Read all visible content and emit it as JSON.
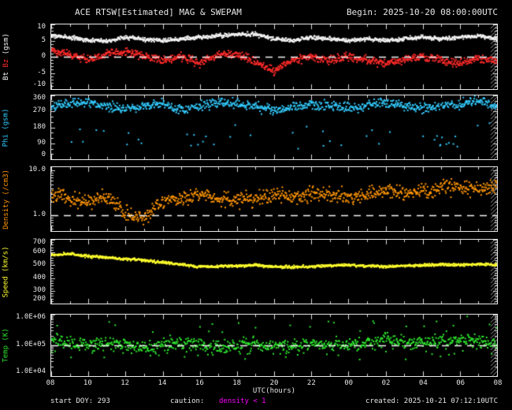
{
  "header": {
    "title": "ACE RTSW[Estimated] MAG & SWEPAM",
    "begin_label": "Begin: 2025-10-20 08:00:00UTC"
  },
  "footer": {
    "start_doy": "start DOY: 293",
    "caution_label": "caution:",
    "caution_value": "density < 1",
    "created": "created: 2025-10-21 07:12:10UTC"
  },
  "colors": {
    "background": "#000000",
    "frame": "#e6e6e6",
    "caution": "#ff00ff",
    "hatch": "#999999"
  },
  "chart_data": {
    "type": "scatter",
    "title": "ACE RTSW[Estimated] MAG & SWEPAM",
    "x_label": "UTC(hours)",
    "x_ticks": [
      "08",
      "10",
      "12",
      "14",
      "16",
      "18",
      "20",
      "22",
      "00",
      "02",
      "04",
      "06",
      "08"
    ],
    "x_range_hours": [
      8,
      32
    ],
    "control_x": [
      8,
      9,
      10,
      11,
      12,
      13,
      14,
      15,
      16,
      17,
      18,
      19,
      20,
      21,
      22,
      23,
      24,
      25,
      26,
      27,
      28,
      29,
      30,
      31,
      32
    ],
    "panels": [
      {
        "name": "mag",
        "ylabel": [
          {
            "text": "Bt",
            "color": "#f5f5f5"
          },
          {
            "text": "Bz",
            "color": "#ff2a2a"
          },
          {
            "text": "(gsm)",
            "color": "#f5f5f5"
          }
        ],
        "scale": "linear",
        "ymin": -10,
        "ymax": 10,
        "minor_step": 1,
        "yticks": [
          {
            "v": 10,
            "label": "10"
          },
          {
            "v": 5,
            "label": "5"
          },
          {
            "v": 0,
            "label": "0"
          },
          {
            "v": -5,
            "label": "-5"
          },
          {
            "v": -10,
            "label": "-10"
          }
        ],
        "dashed_at": 0,
        "series": [
          {
            "name": "Bt",
            "color": "#f5f5f5",
            "noise": 0.5,
            "n": 1100,
            "y": [
              6.5,
              6,
              5,
              5,
              6,
              5.5,
              5,
              5.5,
              6,
              6.5,
              7,
              7,
              5.5,
              5,
              6,
              5.5,
              5,
              5.5,
              5,
              5.5,
              6,
              5.5,
              6,
              6.5,
              5.5
            ]
          },
          {
            "name": "Bz",
            "color": "#ff2a2a",
            "noise": 1.0,
            "n": 1000,
            "y": [
              2,
              0.5,
              -1,
              1,
              1.5,
              0,
              -1,
              0,
              -2,
              0.5,
              1,
              -1.5,
              -4.5,
              -1,
              0,
              -1,
              0,
              -1,
              -2,
              -1,
              0,
              -1,
              -2,
              -0.5,
              -1
            ]
          }
        ]
      },
      {
        "name": "phi",
        "ylabel": [
          {
            "text": "Phi (gsm)",
            "color": "#33ccff"
          }
        ],
        "scale": "linear",
        "ymin": 0,
        "ymax": 360,
        "minor_step": 30,
        "yticks": [
          {
            "v": 360,
            "label": "360"
          },
          {
            "v": 270,
            "label": "270"
          },
          {
            "v": 180,
            "label": "180"
          },
          {
            "v": 90,
            "label": "90"
          },
          {
            "v": 0,
            "label": "0"
          }
        ],
        "dashed_at": null,
        "series": [
          {
            "name": "Phi",
            "color": "#33ccff",
            "noise": 22,
            "n": 900,
            "outlier_prob": 0.05,
            "outlier_shift": -180,
            "y": [
              300,
              310,
              320,
              300,
              285,
              300,
              315,
              275,
              300,
              325,
              315,
              300,
              275,
              290,
              310,
              300,
              290,
              300,
              315,
              300,
              285,
              300,
              310,
              325,
              300
            ]
          }
        ]
      },
      {
        "name": "density",
        "ylabel": [
          {
            "text": "Density (/cm3)",
            "color": "#ff9500"
          }
        ],
        "scale": "log",
        "ymin": 0.45,
        "ymax": 12,
        "yticks": [
          {
            "v": 10,
            "label": "10.0"
          },
          {
            "v": 1,
            "label": "1.0"
          }
        ],
        "dashed_at": 1,
        "series": [
          {
            "name": "Density",
            "color": "#ff9500",
            "noise": 0.14,
            "n": 900,
            "y": [
              3,
              2.5,
              2,
              2.5,
              1.2,
              0.8,
              2,
              2.5,
              3,
              2.5,
              2,
              2.5,
              3,
              2.5,
              3,
              3,
              2.5,
              3,
              3.5,
              3,
              3.5,
              4,
              4.5,
              4,
              4.5
            ]
          }
        ]
      },
      {
        "name": "speed",
        "ylabel": [
          {
            "text": "Speed (km/s)",
            "color": "#ffff2e"
          }
        ],
        "scale": "linear",
        "ymin": 200,
        "ymax": 700,
        "minor_step": 20,
        "yticks": [
          {
            "v": 700,
            "label": "700"
          },
          {
            "v": 600,
            "label": "600"
          },
          {
            "v": 500,
            "label": "500"
          },
          {
            "v": 400,
            "label": "400"
          },
          {
            "v": 300,
            "label": "300"
          },
          {
            "v": 200,
            "label": "200"
          }
        ],
        "dashed_at": null,
        "series": [
          {
            "name": "Speed",
            "color": "#ffff2e",
            "noise": 9,
            "n": 1000,
            "y": [
              580,
              590,
              570,
              560,
              550,
              540,
              520,
              505,
              490,
              490,
              495,
              500,
              490,
              485,
              490,
              495,
              500,
              495,
              490,
              495,
              500,
              505,
              500,
              510,
              505
            ]
          }
        ]
      },
      {
        "name": "temp",
        "ylabel": [
          {
            "text": "Temp (K)",
            "color": "#2ee62e"
          }
        ],
        "scale": "log",
        "ymin": 10000,
        "ymax": 1000000,
        "yticks": [
          {
            "v": 1000000,
            "label": "1.0E+06"
          },
          {
            "v": 100000,
            "label": "1.0E+05"
          },
          {
            "v": 10000,
            "label": "1.0E+04"
          }
        ],
        "dashed_at": 100000,
        "series": [
          {
            "name": "Temp",
            "color": "#2ee62e",
            "noise": 0.18,
            "n": 900,
            "outlier_prob": 0.06,
            "outlier_factor": 4,
            "y": [
              150000,
              120000,
              100000,
              120000,
              100000,
              80000,
              100000,
              120000,
              100000,
              90000,
              100000,
              110000,
              100000,
              90000,
              100000,
              110000,
              100000,
              120000,
              150000,
              130000,
              120000,
              140000,
              160000,
              130000,
              120000
            ]
          }
        ]
      }
    ]
  }
}
